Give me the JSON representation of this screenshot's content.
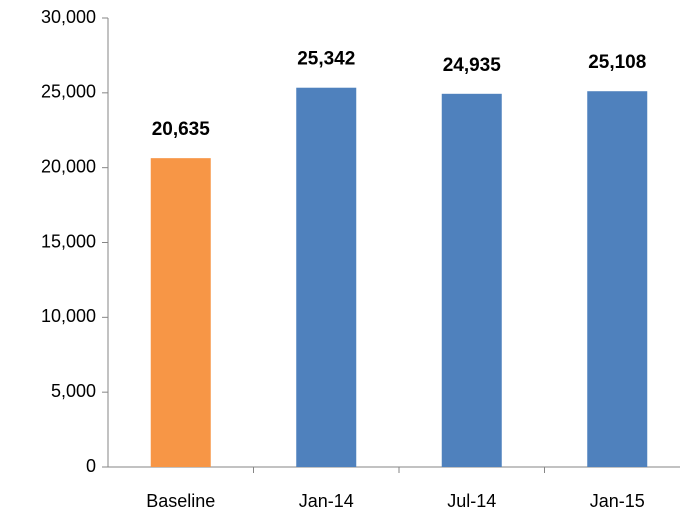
{
  "chart_data": {
    "type": "bar",
    "categories": [
      "Baseline",
      "Jan-14",
      "Jul-14",
      "Jan-15"
    ],
    "values": [
      20635,
      25342,
      24935,
      25108
    ],
    "value_labels": [
      "20,635",
      "25,342",
      "24,935",
      "25,108"
    ],
    "colors": [
      "#f79646",
      "#4f81bd",
      "#4f81bd",
      "#4f81bd"
    ],
    "ylim": [
      0,
      30000
    ],
    "yticks": [
      0,
      {
        "value": 5000,
        "label": "5,000"
      },
      {
        "value": 10000,
        "label": "10,000"
      },
      {
        "value": 15000,
        "label": "15,000"
      },
      {
        "value": 20000,
        "label": "20,000"
      },
      {
        "value": 25000,
        "label": "25,000"
      },
      {
        "value": 30000,
        "label": "30,000"
      }
    ],
    "grid": false
  }
}
